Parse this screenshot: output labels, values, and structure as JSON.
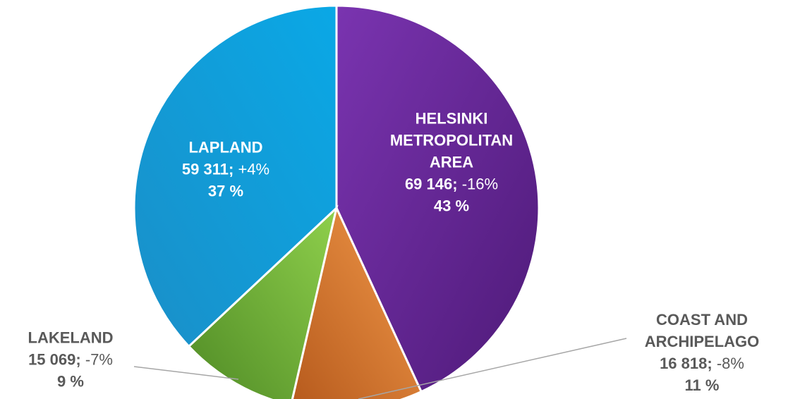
{
  "chart_data": {
    "type": "pie",
    "categories": [
      "HELSINKI METROPOLITAN AREA",
      "COAST AND ARCHIPELAGO",
      "LAKELAND",
      "LAPLAND"
    ],
    "values": [
      69146,
      16818,
      15069,
      59311
    ],
    "value_labels": [
      "69 146;",
      "16 818;",
      "15 069;",
      "59 311;"
    ],
    "change_labels": [
      "-16%",
      "-8%",
      "-7%",
      "+4%"
    ],
    "percent_labels": [
      "43 %",
      "11 %",
      "9 %",
      "37 %"
    ],
    "colors": [
      "#6b2b9c",
      "#e97b2c",
      "#72b83c",
      "#0aa3df"
    ]
  }
}
